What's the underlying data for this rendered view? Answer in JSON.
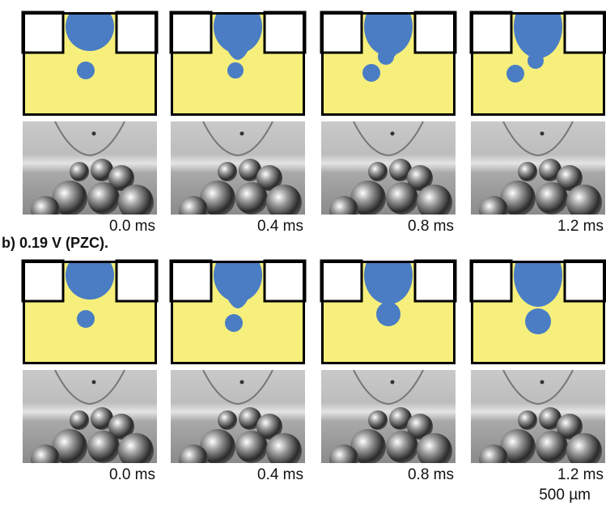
{
  "row_a": {
    "times": [
      "0.0 ms",
      "0.4 ms",
      "0.8 ms",
      "1.2 ms"
    ]
  },
  "row_b": {
    "heading": "b) 0.19 V (PZC).",
    "times": [
      "0.0 ms",
      "0.4 ms",
      "0.8 ms",
      "1.2 ms"
    ],
    "scale_bar": "500 µm"
  }
}
